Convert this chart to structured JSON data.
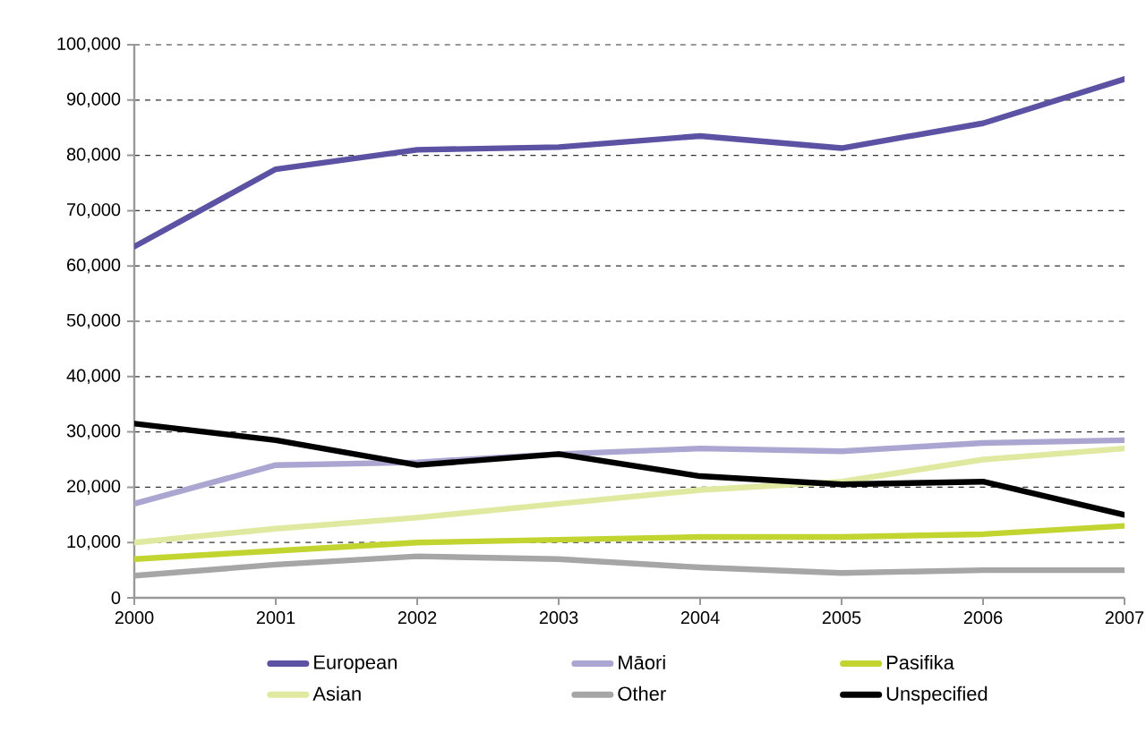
{
  "chart_data": {
    "type": "line",
    "x": [
      2000,
      2001,
      2002,
      2003,
      2004,
      2005,
      2006,
      2007
    ],
    "series": [
      {
        "name": "European",
        "color": "#5b52a3",
        "values": [
          63500,
          77500,
          81000,
          81500,
          83500,
          81300,
          85800,
          93800
        ]
      },
      {
        "name": "Māori",
        "color": "#aaa6d1",
        "values": [
          17000,
          24000,
          24500,
          26000,
          27000,
          26500,
          28000,
          28500
        ]
      },
      {
        "name": "Pasifika",
        "color": "#c1d42f",
        "values": [
          7000,
          8500,
          10000,
          10500,
          11000,
          11000,
          11500,
          13000
        ]
      },
      {
        "name": "Asian",
        "color": "#dfe9a0",
        "values": [
          10000,
          12500,
          14500,
          17000,
          19500,
          21000,
          25000,
          27000
        ]
      },
      {
        "name": "Other",
        "color": "#a6a6a6",
        "values": [
          4000,
          6000,
          7500,
          7000,
          5500,
          4500,
          5000,
          5000
        ]
      },
      {
        "name": "Unspecified",
        "color": "#000000",
        "values": [
          31500,
          28500,
          24000,
          26000,
          22000,
          20500,
          21000,
          15000
        ]
      }
    ],
    "xlim": [
      2000,
      2007
    ],
    "xticks": [
      2000,
      2001,
      2002,
      2003,
      2004,
      2005,
      2006,
      2007
    ],
    "ylim": [
      0,
      100000
    ],
    "yticks": [
      {
        "value": 0,
        "label": "0"
      },
      {
        "value": 10000,
        "label": "10,000"
      },
      {
        "value": 20000,
        "label": "20,000"
      },
      {
        "value": 30000,
        "label": "30,000"
      },
      {
        "value": 40000,
        "label": "40,000"
      },
      {
        "value": 50000,
        "label": "50,000"
      },
      {
        "value": 60000,
        "label": "60,000"
      },
      {
        "value": 70000,
        "label": "70,000"
      },
      {
        "value": 80000,
        "label": "80,000"
      },
      {
        "value": 90000,
        "label": "90,000"
      },
      {
        "value": 100000,
        "label": "100,000"
      }
    ],
    "grid": "y",
    "legend": "bottom",
    "marker": "none",
    "line_style": "solid"
  }
}
